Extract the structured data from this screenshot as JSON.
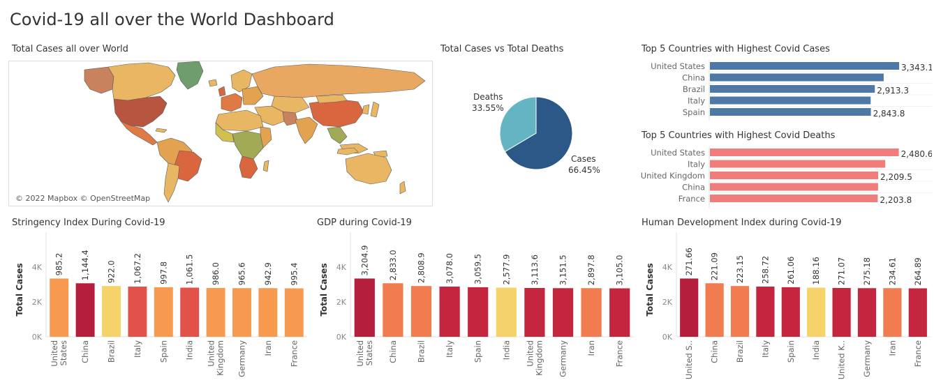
{
  "dashboard": {
    "title": "Covid-19 all over the World Dashboard"
  },
  "map_panel": {
    "title": "Total Cases all over World",
    "credit": "© 2022 Mapbox © OpenStreetMap"
  },
  "colors": {
    "hbar_cases": "#4e79a7",
    "hbar_deaths": "#f07c7c",
    "pie_cases": "#2b5886",
    "pie_deaths": "#64b4c4",
    "palette": [
      "#f5d36a",
      "#f79a4f",
      "#f07c4f",
      "#e2524a",
      "#c5263f",
      "#b51e3c"
    ],
    "map_ocean": "#ffffff",
    "map_outline": "#5a5a5a"
  },
  "chart_data": [
    {
      "id": "pie",
      "type": "pie",
      "title": "Total Cases vs Total Deaths",
      "slices": [
        {
          "label": "Cases",
          "pct_text": "66.45%",
          "value": 66.45
        },
        {
          "label": "Deaths",
          "pct_text": "33.55%",
          "value": 33.55
        }
      ]
    },
    {
      "id": "top-cases",
      "type": "bar",
      "orientation": "horizontal",
      "title": "Top 5 Countries with Highest Covid Cases",
      "categories": [
        "United States",
        "China",
        "Brazil",
        "Italy",
        "Spain"
      ],
      "values": [
        3343.1,
        3070,
        2913.3,
        2840,
        2843.8
      ],
      "labels": [
        "3,343.1",
        "",
        "2,913.3",
        "",
        "2,843.8"
      ],
      "xlim": [
        0,
        3700
      ]
    },
    {
      "id": "top-deaths",
      "type": "bar",
      "orientation": "horizontal",
      "title": "Top 5 Countries with Highest Covid Deaths",
      "categories": [
        "United States",
        "Italy",
        "United Kingdom",
        "China",
        "France"
      ],
      "values": [
        2480.6,
        2302,
        2209.5,
        2208,
        2203.8
      ],
      "labels": [
        "2,480.6",
        "",
        "2,209.5",
        "",
        "2,203.8"
      ],
      "xlim": [
        0,
        2750
      ]
    },
    {
      "id": "stringency",
      "type": "bar",
      "title": "Stringency Index During Covid-19",
      "ylabel": "Total Cases",
      "yticks": [
        "0K",
        "2K",
        "4K"
      ],
      "ytick_values": [
        0,
        2000,
        4000
      ],
      "ylim": [
        0,
        5800
      ],
      "categories": [
        "United States",
        "China",
        "Brazil",
        "Italy",
        "Spain",
        "India",
        "United Kingdom",
        "Germany",
        "Iran",
        "France"
      ],
      "tick_labels": [
        [
          "United",
          "States"
        ],
        [
          "China"
        ],
        [
          "Brazil"
        ],
        [
          "Italy"
        ],
        [
          "Spain"
        ],
        [
          "India"
        ],
        [
          "United",
          "Kingdom"
        ],
        [
          "Germany"
        ],
        [
          "Iran"
        ],
        [
          "France"
        ]
      ],
      "values": [
        3343,
        3070,
        2913,
        2880,
        2844,
        2820,
        2800,
        2790,
        2790,
        2780
      ],
      "labels": [
        "985.2",
        "1,144.4",
        "922.0",
        "1,067.2",
        "997.8",
        "1,061.5",
        "986.0",
        "965.6",
        "942.9",
        "995.4"
      ],
      "color_idx": [
        1,
        5,
        0,
        3,
        1,
        3,
        1,
        1,
        1,
        1
      ]
    },
    {
      "id": "gdp",
      "type": "bar",
      "title": "GDP during Covid-19",
      "ylabel": "Total Cases",
      "yticks": [
        "0K",
        "2K",
        "4K"
      ],
      "ytick_values": [
        0,
        2000,
        4000
      ],
      "ylim": [
        0,
        5800
      ],
      "categories": [
        "United States",
        "China",
        "Brazil",
        "Italy",
        "Spain",
        "India",
        "United Kingdom",
        "Germany",
        "Iran",
        "France"
      ],
      "tick_labels": [
        [
          "United",
          "States"
        ],
        [
          "China"
        ],
        [
          "Brazil"
        ],
        [
          "Italy"
        ],
        [
          "Spain"
        ],
        [
          "India"
        ],
        [
          "United",
          "Kingdom"
        ],
        [
          "Germany"
        ],
        [
          "Iran"
        ],
        [
          "France"
        ]
      ],
      "values": [
        3343,
        3070,
        2913,
        2880,
        2844,
        2820,
        2800,
        2790,
        2790,
        2780
      ],
      "labels": [
        "3,204.9",
        "2,833.0",
        "2,808.9",
        "3,078.0",
        "3,059.5",
        "2,577.9",
        "3,113.6",
        "3,151.5",
        "2,897.8",
        "3,105.0"
      ],
      "color_idx": [
        5,
        2,
        2,
        4,
        4,
        0,
        4,
        4,
        2,
        4
      ]
    },
    {
      "id": "hdi",
      "type": "bar",
      "title": "Human Development Index during Covid-19",
      "ylabel": "Total Cases",
      "yticks": [
        "0K",
        "2K",
        "4K"
      ],
      "ytick_values": [
        0,
        2000,
        4000
      ],
      "ylim": [
        0,
        5800
      ],
      "categories": [
        "United States",
        "China",
        "Brazil",
        "Italy",
        "Spain",
        "India",
        "United Kingdom",
        "Germany",
        "Iran",
        "France"
      ],
      "tick_labels": [
        [
          "United S.."
        ],
        [
          "China"
        ],
        [
          "Brazil"
        ],
        [
          "Italy"
        ],
        [
          "Spain"
        ],
        [
          "India"
        ],
        [
          "United K.."
        ],
        [
          "Germany"
        ],
        [
          "Iran"
        ],
        [
          "France"
        ]
      ],
      "values": [
        3343,
        3070,
        2913,
        2880,
        2844,
        2820,
        2800,
        2790,
        2790,
        2780
      ],
      "labels": [
        "271.66",
        "221.09",
        "223.15",
        "258.72",
        "261.06",
        "188.16",
        "271.07",
        "275.18",
        "234.61",
        "264.89"
      ],
      "color_idx": [
        5,
        2,
        2,
        4,
        4,
        0,
        4,
        4,
        2,
        4
      ]
    }
  ]
}
